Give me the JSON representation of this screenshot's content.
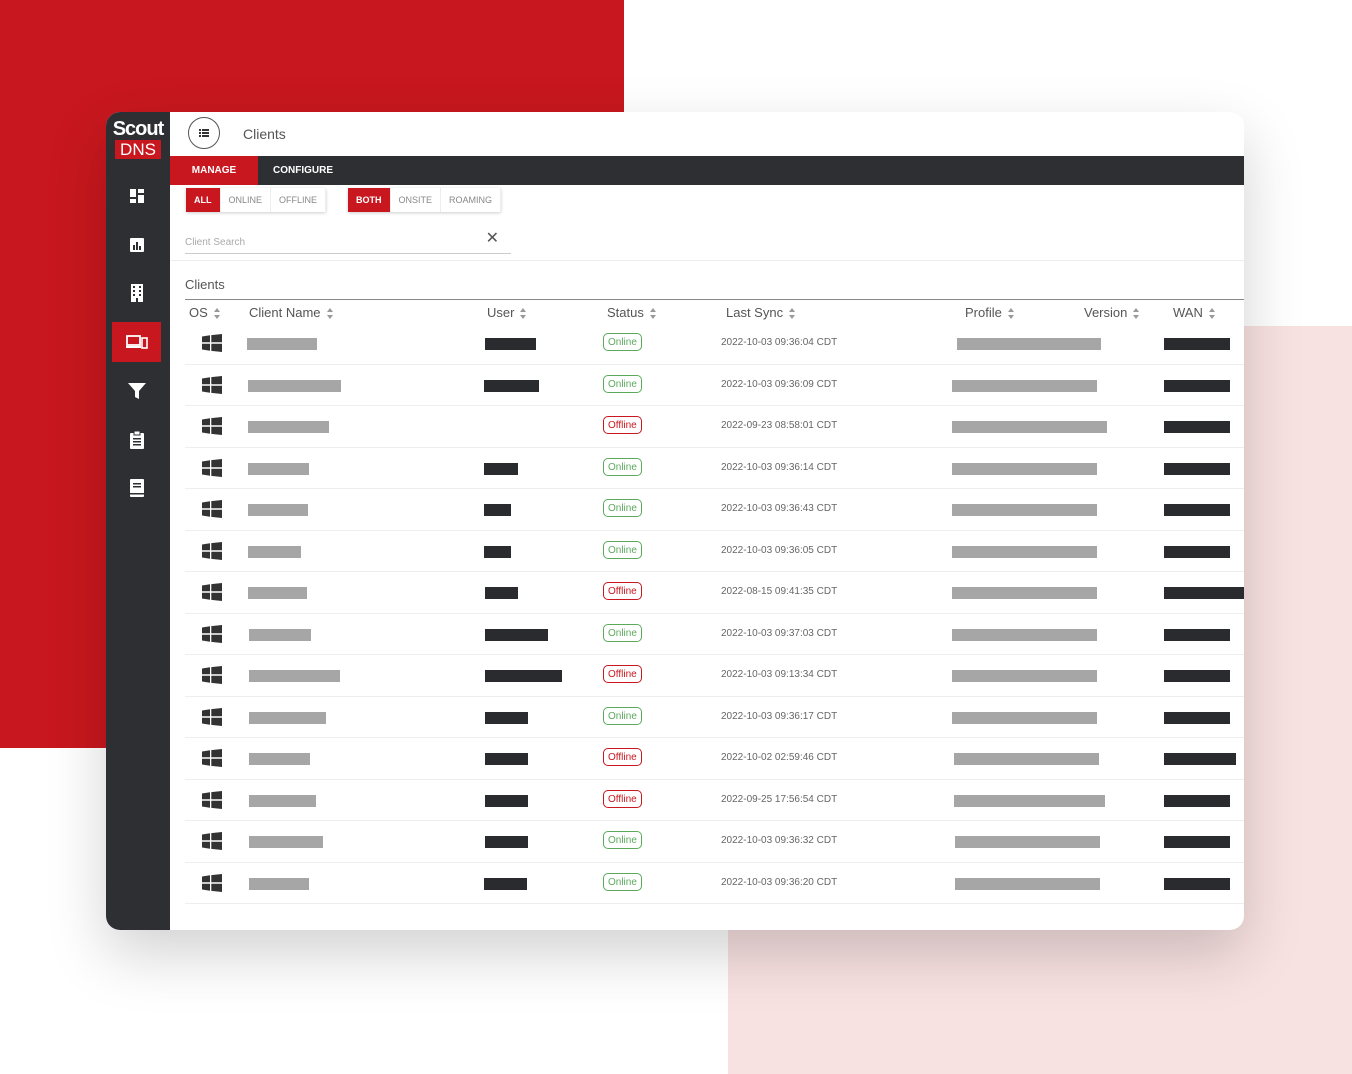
{
  "app": {
    "logo_line1": "Scout",
    "logo_line2": "DNS"
  },
  "header": {
    "title": "Clients"
  },
  "tabs": [
    {
      "label": "MANAGE"
    },
    {
      "label": "CONFIGURE"
    }
  ],
  "filters": {
    "status": [
      {
        "label": "ALL"
      },
      {
        "label": "ONLINE"
      },
      {
        "label": "OFFLINE"
      }
    ],
    "location": [
      {
        "label": "BOTH"
      },
      {
        "label": "ONSITE"
      },
      {
        "label": "ROAMING"
      }
    ]
  },
  "search": {
    "placeholder": "Client Search",
    "value": ""
  },
  "section": {
    "title": "Clients"
  },
  "table": {
    "columns": [
      {
        "label": "OS"
      },
      {
        "label": "Client Name"
      },
      {
        "label": "User"
      },
      {
        "label": "Status"
      },
      {
        "label": "Last Sync"
      },
      {
        "label": "Profile"
      },
      {
        "label": "Version"
      },
      {
        "label": "WAN"
      }
    ],
    "rows": [
      {
        "status": "Online",
        "last_sync": "2022-10-03 09:36:04 CDT"
      },
      {
        "status": "Online",
        "last_sync": "2022-10-03 09:36:09 CDT"
      },
      {
        "status": "Offline",
        "last_sync": "2022-09-23 08:58:01 CDT"
      },
      {
        "status": "Online",
        "last_sync": "2022-10-03 09:36:14 CDT"
      },
      {
        "status": "Online",
        "last_sync": "2022-10-03 09:36:43 CDT"
      },
      {
        "status": "Online",
        "last_sync": "2022-10-03 09:36:05 CDT"
      },
      {
        "status": "Offline",
        "last_sync": "2022-08-15 09:41:35 CDT"
      },
      {
        "status": "Online",
        "last_sync": "2022-10-03 09:37:03 CDT"
      },
      {
        "status": "Offline",
        "last_sync": "2022-10-03 09:13:34 CDT"
      },
      {
        "status": "Online",
        "last_sync": "2022-10-03 09:36:17 CDT"
      },
      {
        "status": "Offline",
        "last_sync": "2022-10-02 02:59:46 CDT"
      },
      {
        "status": "Offline",
        "last_sync": "2022-09-25 17:56:54 CDT"
      },
      {
        "status": "Online",
        "last_sync": "2022-10-03 09:36:32 CDT"
      },
      {
        "status": "Online",
        "last_sync": "2022-10-03 09:36:20 CDT"
      }
    ]
  },
  "colors": {
    "accent": "#c8171e",
    "sidebar": "#2e2f33",
    "online": "#5ca95c",
    "offline": "#c8171e"
  }
}
